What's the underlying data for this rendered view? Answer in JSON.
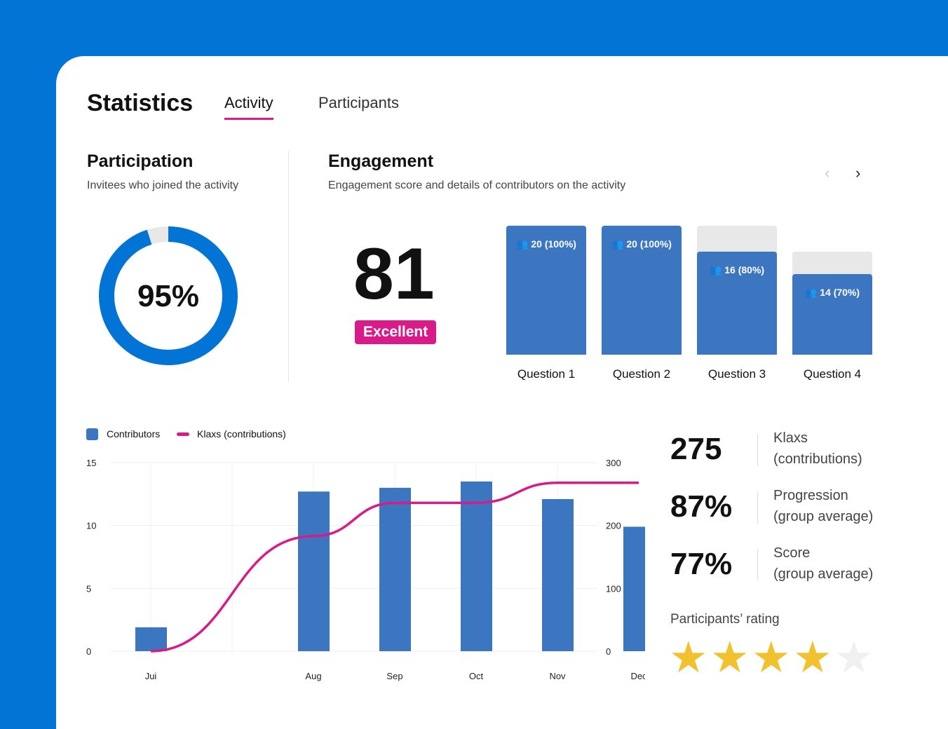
{
  "header": {
    "title": "Statistics",
    "tabs": [
      {
        "label": "Activity",
        "active": true
      },
      {
        "label": "Participants",
        "active": false
      }
    ]
  },
  "participation": {
    "title": "Participation",
    "subtitle": "Invitees who joined the activity",
    "percent_label": "95%",
    "percent": 95,
    "color": "#0274d6"
  },
  "engagement": {
    "title": "Engagement",
    "subtitle": "Engagement score and details of contributors on the activity",
    "score": "81",
    "rating": "Excellent",
    "questions": [
      {
        "label": "Question 1",
        "value": "20 (100%)",
        "percent": 100,
        "bg": 100
      },
      {
        "label": "Question 2",
        "value": "20 (100%)",
        "percent": 100,
        "bg": 100
      },
      {
        "label": "Question 3",
        "value": "16 (80%)",
        "percent": 80,
        "bg": 100
      },
      {
        "label": "Question 4",
        "value": "14 (70%)",
        "percent": 70,
        "bg": 80
      }
    ]
  },
  "chart_data": {
    "type": "bar+line",
    "categories": [
      "Jui",
      "Aug",
      "Sep",
      "Oct",
      "Nov",
      "Dec"
    ],
    "series": [
      {
        "name": "Contributors",
        "type": "bar",
        "axis": "left",
        "color": "#3c76c0",
        "values": [
          1.9,
          12.7,
          13,
          13.5,
          12.1,
          9.9
        ]
      },
      {
        "name": "Klaxs (contributions)",
        "type": "line",
        "axis": "right",
        "color": "#d81b88",
        "values": [
          0,
          183,
          236,
          236,
          268,
          268
        ]
      }
    ],
    "yleft": {
      "ticks": [
        "0",
        "5",
        "10",
        "15"
      ],
      "range": [
        0,
        15
      ]
    },
    "yright": {
      "ticks": [
        "0",
        "100",
        "200",
        "300"
      ],
      "range": [
        0,
        300
      ]
    },
    "grid": true,
    "legend": "top-left"
  },
  "stats": [
    {
      "value": "275",
      "label1": "Klaxs",
      "label2": "(contributions)"
    },
    {
      "value": "87%",
      "label1": "Progression",
      "label2": "(group average)"
    },
    {
      "value": "77%",
      "label1": "Score",
      "label2": "(group average)"
    }
  ],
  "rating": {
    "label": "Participants’ rating",
    "stars": 4,
    "max": 5,
    "color": "#f2c12e"
  }
}
